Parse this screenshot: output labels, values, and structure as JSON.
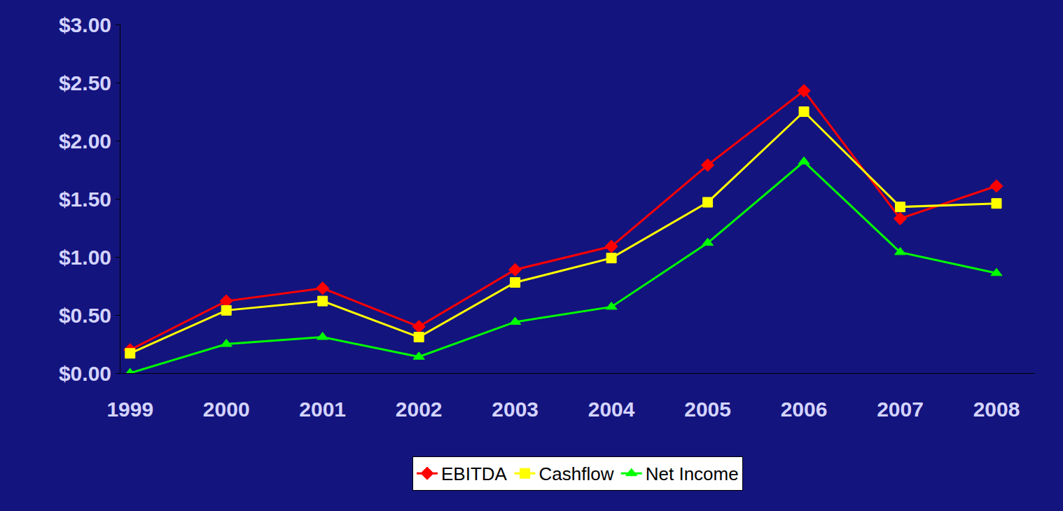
{
  "chart_data": {
    "type": "line",
    "categories": [
      "1999",
      "2000",
      "2001",
      "2002",
      "2003",
      "2004",
      "2005",
      "2006",
      "2007",
      "2008"
    ],
    "series": [
      {
        "name": "EBITDA",
        "color": "#ff0000",
        "marker": "diamond",
        "values": [
          0.2,
          0.62,
          0.73,
          0.4,
          0.89,
          1.09,
          1.79,
          2.43,
          1.33,
          1.61
        ]
      },
      {
        "name": "Cashflow",
        "color": "#ffff00",
        "marker": "square",
        "values": [
          0.17,
          0.54,
          0.62,
          0.31,
          0.78,
          0.99,
          1.47,
          2.25,
          1.43,
          1.46
        ]
      },
      {
        "name": "Net Income",
        "color": "#00ff00",
        "marker": "triangle-up",
        "values": [
          0.0,
          0.25,
          0.31,
          0.14,
          0.44,
          0.57,
          1.12,
          1.82,
          1.04,
          0.86
        ]
      }
    ],
    "ylim": [
      0,
      3
    ],
    "yticks": [
      {
        "value": 0,
        "label": "$0.00"
      },
      {
        "value": 0.5,
        "label": "$0.50"
      },
      {
        "value": 1,
        "label": "$1.00"
      },
      {
        "value": 1.5,
        "label": "$1.50"
      },
      {
        "value": 2,
        "label": "$2.00"
      },
      {
        "value": 2.5,
        "label": "$2.50"
      },
      {
        "value": 3,
        "label": "$3.00"
      }
    ],
    "grid": false,
    "legend": "bottom"
  }
}
